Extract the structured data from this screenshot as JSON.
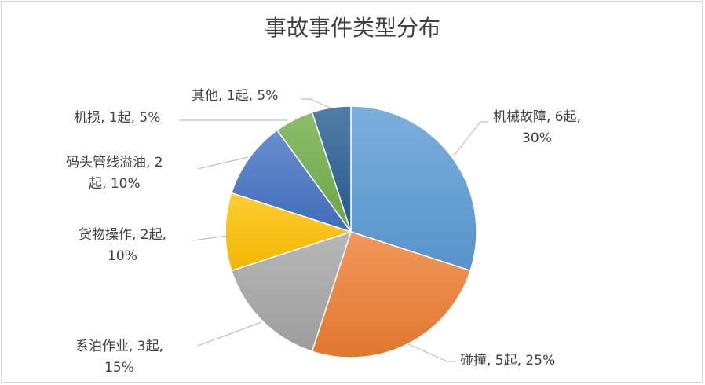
{
  "chart_data": {
    "type": "pie",
    "title": "事故事件类型分布",
    "unit": "起",
    "slices": [
      {
        "name": "机械故障",
        "value": 6,
        "percent": 30,
        "color": "#5b9bd5",
        "label_lines": [
          "机械故障, 6起,",
          "30%"
        ]
      },
      {
        "name": "碰撞",
        "value": 5,
        "percent": 25,
        "color": "#ed7d31",
        "label_lines": [
          "碰撞, 5起, 25%"
        ]
      },
      {
        "name": "系泊作业",
        "value": 3,
        "percent": 15,
        "color": "#a5a5a5",
        "label_lines": [
          "系泊作业, 3起,",
          "15%"
        ]
      },
      {
        "name": "货物操作",
        "value": 2,
        "percent": 10,
        "color": "#ffc000",
        "label_lines": [
          "货物操作, 2起,",
          "10%"
        ]
      },
      {
        "name": "码头管线溢油",
        "value": 2,
        "percent": 10,
        "color": "#4472c4",
        "label_lines": [
          "码头管线溢油, 2",
          "起, 10%"
        ]
      },
      {
        "name": "机损",
        "value": 1,
        "percent": 5,
        "color": "#70ad47",
        "label_lines": [
          "机损, 1起, 5%"
        ]
      },
      {
        "name": "其他",
        "value": 1,
        "percent": 5,
        "color": "#255e91",
        "label_lines": [
          "其他, 1起, 5%"
        ]
      }
    ],
    "legend": "none",
    "data_labels": "outside with leader lines"
  }
}
